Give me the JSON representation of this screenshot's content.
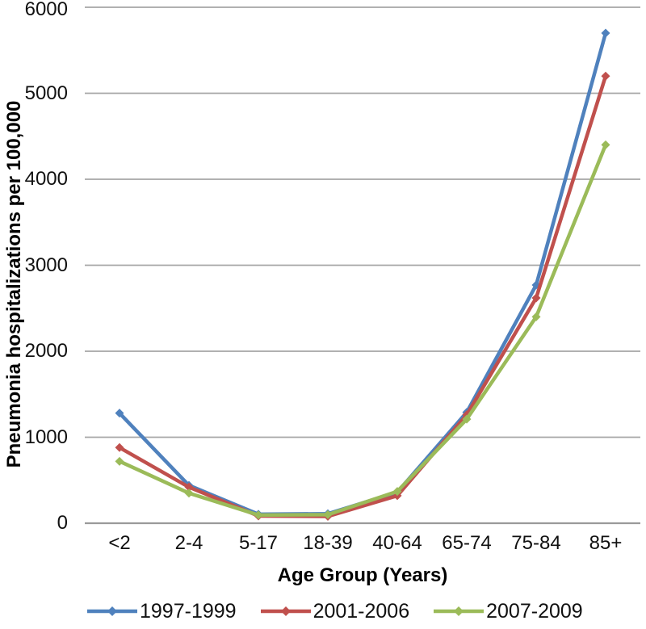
{
  "figure": {
    "background_color": "#ffffff",
    "text_color": "#111111"
  },
  "chart_data": {
    "type": "line",
    "title": "",
    "xlabel": "Age Group (Years)",
    "ylabel": "Pneumonia hospitalizations per 100,000",
    "categories": [
      "<2",
      "2-4",
      "5-17",
      "18-39",
      "40-64",
      "65-74",
      "75-84",
      "85+"
    ],
    "series": [
      {
        "name": "1997-1999",
        "color": "#4F81BD",
        "values": [
          1280,
          440,
          105,
          110,
          360,
          1290,
          2770,
          5700
        ]
      },
      {
        "name": "2001-2006",
        "color": "#C0504D",
        "values": [
          880,
          420,
          85,
          80,
          320,
          1260,
          2620,
          5200
        ]
      },
      {
        "name": "2007-2009",
        "color": "#9BBB59",
        "values": [
          720,
          350,
          95,
          100,
          370,
          1210,
          2400,
          4400
        ]
      }
    ],
    "ylim": [
      0,
      6000
    ],
    "yticks": [
      0,
      1000,
      2000,
      3000,
      4000,
      5000,
      6000
    ],
    "grid": true,
    "gridline_color": "#A6A6A6",
    "axis_line_color": "#9A9A9A",
    "legend_position": "bottom",
    "marker": "diamond"
  }
}
